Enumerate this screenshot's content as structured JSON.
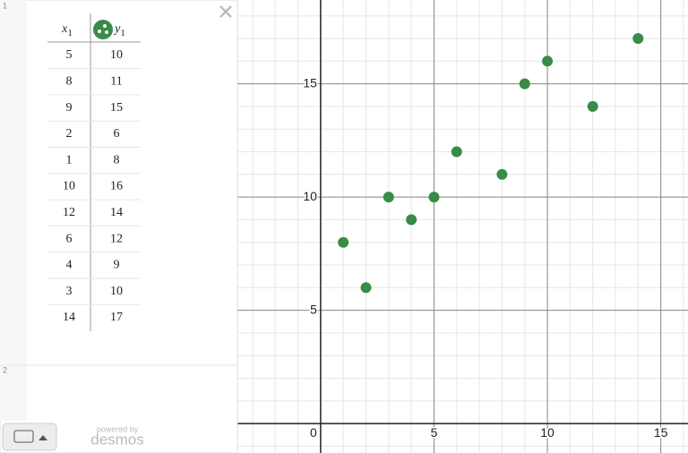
{
  "expression_list": {
    "expressions": [
      {
        "index": "1",
        "table": {
          "headers": [
            {
              "name": "x",
              "subscript": "1"
            },
            {
              "name": "y",
              "subscript": "1"
            }
          ],
          "rows": [
            [
              5,
              10
            ],
            [
              8,
              11
            ],
            [
              9,
              15
            ],
            [
              2,
              6
            ],
            [
              1,
              8
            ],
            [
              10,
              16
            ],
            [
              12,
              14
            ],
            [
              6,
              12
            ],
            [
              4,
              9
            ],
            [
              3,
              10
            ],
            [
              14,
              17
            ]
          ]
        }
      },
      {
        "index": "2"
      }
    ]
  },
  "footer": {
    "powered_by": "powered by",
    "brand": "desmos"
  },
  "graph": {
    "xlim": [
      -3.67,
      16.2
    ],
    "ylim": [
      -1.3,
      18.7
    ],
    "xticks": [
      0,
      5,
      10,
      15
    ],
    "yticks": [
      5,
      10,
      15
    ],
    "minor_step": 1,
    "point_color": "#388c46"
  }
}
